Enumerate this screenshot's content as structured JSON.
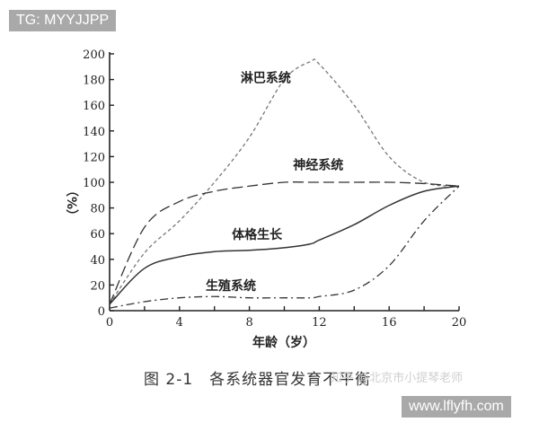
{
  "watermark_top": "TG: MYYJJPP",
  "watermark_bottom": "www.lflyfh.com",
  "watermark_faint": "知乎 @北京市小提琴老师",
  "caption": "图 2-1　各系统器官发育不平衡",
  "chart_data": {
    "type": "line",
    "title": "图 2-1 各系统器官发育不平衡",
    "xlabel": "年龄（岁）",
    "ylabel": "（%）",
    "xlim": [
      0,
      20
    ],
    "ylim": [
      0,
      200
    ],
    "x_ticks": [
      0,
      4,
      8,
      12,
      16,
      20
    ],
    "y_ticks": [
      0,
      20,
      40,
      60,
      80,
      100,
      120,
      140,
      160,
      180,
      200
    ],
    "grid": false,
    "x": [
      0,
      2,
      4,
      6,
      8,
      10,
      11.5,
      12,
      14,
      16,
      18,
      20
    ],
    "series": [
      {
        "name": "淋巴系统",
        "style": "short-dash",
        "values": [
          5,
          45,
          70,
          100,
          135,
          180,
          194,
          192,
          160,
          120,
          100,
          97
        ]
      },
      {
        "name": "神经系统",
        "style": "long-dash",
        "values": [
          5,
          65,
          85,
          93,
          97,
          100,
          100,
          100,
          100,
          100,
          99,
          97
        ]
      },
      {
        "name": "体格生长",
        "style": "solid",
        "values": [
          5,
          33,
          42,
          46,
          47,
          49,
          52,
          55,
          67,
          82,
          93,
          97
        ]
      },
      {
        "name": "生殖系统",
        "style": "dash-dot",
        "values": [
          2,
          7,
          10,
          11,
          10,
          10,
          10,
          11,
          16,
          35,
          70,
          97
        ]
      }
    ],
    "annotations": [
      {
        "text": "淋巴系统",
        "x": 7.5,
        "y": 178
      },
      {
        "text": "神经系统",
        "x": 10.5,
        "y": 110
      },
      {
        "text": "体格生长",
        "x": 7,
        "y": 56
      },
      {
        "text": "生殖系统",
        "x": 5.5,
        "y": 16
      }
    ]
  }
}
